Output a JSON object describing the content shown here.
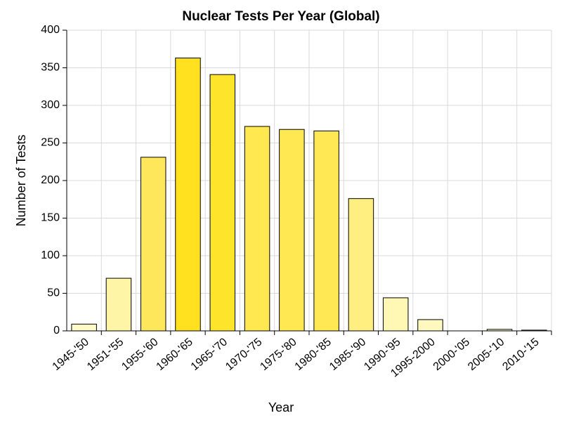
{
  "chart_data": {
    "type": "bar",
    "title": "Nuclear Tests Per Year (Global)",
    "x_label": "Year",
    "y_label": "Number of Tests",
    "categories": [
      "1945-'50",
      "1951-'55",
      "1955-'60",
      "1960-'65",
      "1965-'70",
      "1970-'75",
      "1975-'80",
      "1980-'85",
      "1985-'90",
      "1990-'95",
      "1995-2000",
      "2000-'05",
      "2005-'10",
      "2010-'15"
    ],
    "values": [
      9,
      70,
      231,
      363,
      341,
      272,
      268,
      266,
      176,
      44,
      15,
      0,
      2,
      1
    ],
    "colors": [
      "#fffac8",
      "#fff5a6",
      "#ffe75c",
      "#ffe11f",
      "#ffe42c",
      "#ffe850",
      "#ffe852",
      "#ffe853",
      "#ffef80",
      "#fff8b5",
      "#fff9c0",
      "#fffbd0",
      "#fffbce",
      "#fffbcf"
    ],
    "ylim": [
      0,
      400
    ],
    "yticks": [
      0,
      50,
      100,
      150,
      200,
      250,
      300,
      350,
      400
    ],
    "grid": true
  }
}
